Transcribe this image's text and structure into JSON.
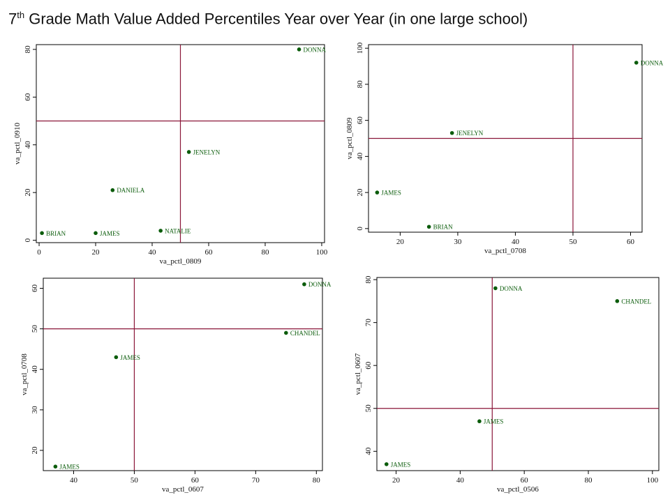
{
  "page_title": {
    "grade_number": "7",
    "grade_suffix": "th",
    "rest": " Grade Math Value Added Percentiles Year over Year (in one large school)"
  },
  "colors": {
    "point": "#0b5c0b",
    "label": "#0b5c0b",
    "refline": "#8a1538",
    "axis": "#000000"
  },
  "chart_data": [
    {
      "type": "scatter",
      "title": "",
      "xlabel": "va_pctl_0809",
      "ylabel": "va_pctl_0910",
      "xlim": [
        -1,
        101
      ],
      "ylim": [
        -1,
        82
      ],
      "xticks": [
        0,
        20,
        40,
        60,
        80,
        100
      ],
      "yticks": [
        0,
        20,
        40,
        60,
        80
      ],
      "ref_lines": {
        "x": 50,
        "y": 50
      },
      "points": [
        {
          "label": "DONNA",
          "x": 92,
          "y": 80
        },
        {
          "label": "JENELYN",
          "x": 53,
          "y": 37
        },
        {
          "label": "DANIELA",
          "x": 26,
          "y": 21
        },
        {
          "label": "BRIAN",
          "x": 1,
          "y": 3
        },
        {
          "label": "JAMES",
          "x": 20,
          "y": 3
        },
        {
          "label": "NATALIE",
          "x": 43,
          "y": 4
        }
      ]
    },
    {
      "type": "scatter",
      "title": "",
      "xlabel": "va_pctl_0708",
      "ylabel": "va_pctl_0809",
      "xlim": [
        14.5,
        62
      ],
      "ylim": [
        -2,
        102
      ],
      "xticks": [
        20,
        30,
        40,
        50,
        60
      ],
      "yticks": [
        0,
        20,
        40,
        60,
        80,
        100
      ],
      "ref_lines": {
        "x": 50,
        "y": 50
      },
      "points": [
        {
          "label": "DONNA",
          "x": 61,
          "y": 92
        },
        {
          "label": "JENELYN",
          "x": 29,
          "y": 53
        },
        {
          "label": "JAMES",
          "x": 16,
          "y": 20
        },
        {
          "label": "BRIAN",
          "x": 25,
          "y": 1
        }
      ]
    },
    {
      "type": "scatter",
      "title": "",
      "xlabel": "va_pctl_0607",
      "ylabel": "va_pctl_0708",
      "xlim": [
        35,
        81
      ],
      "ylim": [
        15,
        62.5
      ],
      "xticks": [
        40,
        50,
        60,
        70,
        80
      ],
      "yticks": [
        20,
        30,
        40,
        50,
        60
      ],
      "ref_lines": {
        "x": 50,
        "y": 50
      },
      "points": [
        {
          "label": "DONNA",
          "x": 78,
          "y": 61
        },
        {
          "label": "CHANDEL",
          "x": 75,
          "y": 49
        },
        {
          "label": "JAMES",
          "x": 47,
          "y": 43
        },
        {
          "label": "JAMES",
          "x": 37,
          "y": 16
        }
      ]
    },
    {
      "type": "scatter",
      "title": "",
      "xlabel": "va_pctl_0506",
      "ylabel": "va_pctl_0607",
      "xlim": [
        14,
        102
      ],
      "ylim": [
        35.5,
        80.5
      ],
      "xticks": [
        20,
        40,
        60,
        80,
        100
      ],
      "yticks": [
        40,
        50,
        60,
        70,
        80
      ],
      "ref_lines": {
        "x": 50,
        "y": 50
      },
      "points": [
        {
          "label": "DONNA",
          "x": 51,
          "y": 78
        },
        {
          "label": "CHANDEL",
          "x": 89,
          "y": 75
        },
        {
          "label": "JAMES",
          "x": 46,
          "y": 47
        },
        {
          "label": "JAMES",
          "x": 17,
          "y": 37
        }
      ]
    }
  ]
}
